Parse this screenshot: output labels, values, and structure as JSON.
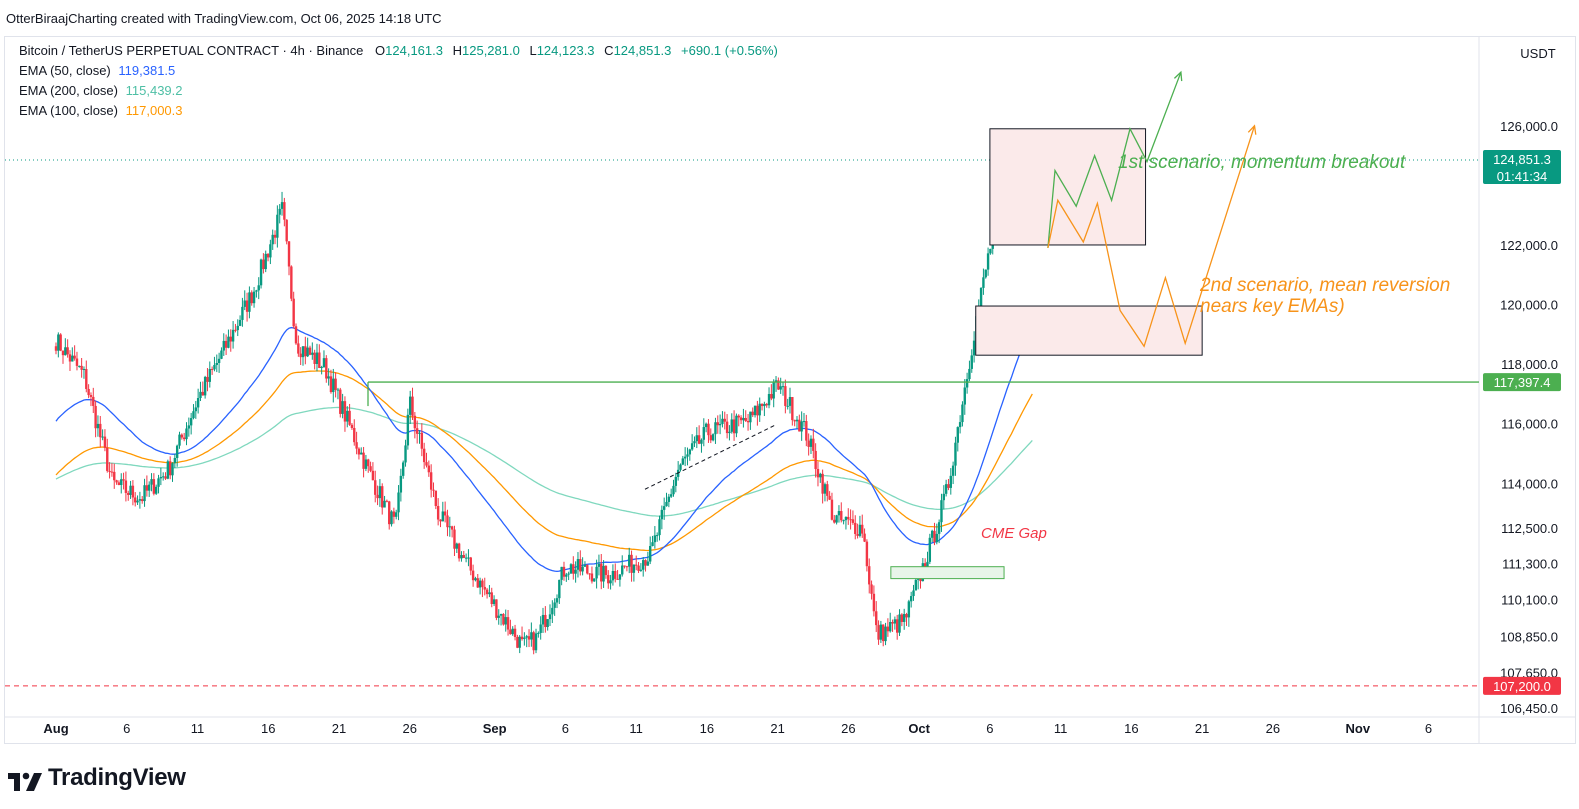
{
  "header": {
    "attribution": "OtterBiraajCharting created with TradingView.com, Oct 06, 2025 14:18 UTC"
  },
  "legend": {
    "symbol": "Bitcoin / TetherUS PERPETUAL CONTRACT · 4h · Binance",
    "o_label": "O",
    "o": "124,161.3",
    "h_label": "H",
    "h": "125,281.0",
    "l_label": "L",
    "l": "124,123.3",
    "c_label": "C",
    "c": "124,851.3",
    "change": "+690.1 (+0.56%)",
    "ema50_label": "EMA (50, close)",
    "ema50": "119,381.5",
    "ema200_label": "EMA (200, close)",
    "ema200": "115,439.2",
    "ema100_label": "EMA (100, close)",
    "ema100": "117,000.3"
  },
  "price_axis": {
    "currency": "USDT",
    "ticks": [
      "126,000.0",
      "122,000.0",
      "120,000.0",
      "118,000.0",
      "116,000.0",
      "114,000.0",
      "112,500.0",
      "111,300.0",
      "110,100.0",
      "108,850.0",
      "107,650.0",
      "106,450.0"
    ],
    "ticks_v": [
      126000,
      122000,
      120000,
      118000,
      116000,
      114000,
      112500,
      111300,
      110100,
      108850,
      107650,
      106450
    ],
    "last_price": "124,851.3",
    "countdown": "01:41:34",
    "resistance_price": "117,397.4",
    "support_price": "107,200.0"
  },
  "time_axis": {
    "labels": [
      "Aug",
      "6",
      "11",
      "16",
      "21",
      "26",
      "Sep",
      "6",
      "11",
      "16",
      "21",
      "26",
      "Oct",
      "6",
      "11",
      "16",
      "21",
      "26",
      "Nov",
      "6"
    ],
    "bold": [
      true,
      false,
      false,
      false,
      false,
      false,
      true,
      false,
      false,
      false,
      false,
      false,
      true,
      false,
      false,
      false,
      false,
      false,
      true,
      false
    ],
    "day_index": [
      0,
      5,
      10,
      15,
      20,
      25,
      31,
      36,
      41,
      46,
      51,
      56,
      61,
      66,
      71,
      76,
      81,
      86,
      92,
      97
    ]
  },
  "annotations": {
    "scenario1": "1st scenario, momentum breakout",
    "scenario2_line1": "2nd scenario, mean reversion",
    "scenario2_line2": "nears key EMAs)",
    "cme_gap": "CME Gap"
  },
  "colors": {
    "up": "#089981",
    "down": "#f23645",
    "ema50": "#2962ff",
    "ema100": "#ff9800",
    "ema200": "#7fd8be",
    "green_ann": "#4caf50",
    "orange_ann": "#f7931a",
    "support": "#f23645",
    "box_fill": "#fbeaea"
  },
  "footer": {
    "brand": "TradingView"
  },
  "chart_data": {
    "type": "candlestick",
    "interval": "4h",
    "x_start": "2025-07-29",
    "series": [
      {
        "name": "Price",
        "kind": "close-path",
        "x": [
          "2025-07-29",
          "2025-07-31",
          "2025-08-02",
          "2025-08-04",
          "2025-08-06",
          "2025-08-08",
          "2025-08-10",
          "2025-08-12",
          "2025-08-14",
          "2025-08-15",
          "2025-08-17",
          "2025-08-20",
          "2025-08-22",
          "2025-08-23",
          "2025-08-25",
          "2025-08-27",
          "2025-08-31",
          "2025-09-01",
          "2025-09-03",
          "2025-09-06",
          "2025-09-09",
          "2025-09-11",
          "2025-09-13",
          "2025-09-16",
          "2025-09-18",
          "2025-09-20",
          "2025-09-22",
          "2025-09-24",
          "2025-09-25",
          "2025-09-27",
          "2025-09-29",
          "2025-09-30",
          "2025-10-02",
          "2025-10-03",
          "2025-10-05",
          "2025-10-06"
        ],
        "y": [
          118800,
          117600,
          114000,
          113500,
          114500,
          116800,
          118600,
          120500,
          123200,
          118700,
          117900,
          114500,
          112500,
          116700,
          113000,
          111300,
          108500,
          108800,
          111200,
          110900,
          111600,
          114500,
          115700,
          116100,
          117300,
          115700,
          112800,
          112500,
          108900,
          109400,
          112200,
          113800,
          119400,
          121900,
          124500,
          124851
        ]
      },
      {
        "name": "EMA (50, close)",
        "values_start": 116000,
        "values_end": 119381.5
      },
      {
        "name": "EMA (100, close)",
        "values_start": 114200,
        "values_end": 117000.3
      },
      {
        "name": "EMA (200, close)",
        "values_start": 114100,
        "values_end": 115439.2
      }
    ],
    "levels": {
      "resistance": 117397.4,
      "support": 107200.0,
      "last": 124851.3
    },
    "zones": [
      {
        "label": "1st scenario, momentum breakout",
        "from": "2025-10-03",
        "to": "2025-10-14",
        "low": 122000,
        "high": 125900
      },
      {
        "label": "2nd scenario, mean reversion nears key EMAs)",
        "from": "2025-10-02",
        "to": "2025-10-18",
        "low": 118300,
        "high": 119950
      },
      {
        "label": "CME Gap",
        "from": "2025-09-26",
        "to": "2025-10-04",
        "low": 110800,
        "high": 111200
      }
    ],
    "ylim": [
      105700,
      127600
    ]
  }
}
